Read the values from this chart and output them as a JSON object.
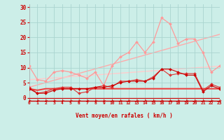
{
  "bg_color": "#cceee8",
  "grid_color": "#aad4d0",
  "xlabel": "Vent moyen/en rafales ( km/h )",
  "xlabel_color": "#cc0000",
  "tick_color": "#cc0000",
  "xmin": 0,
  "xmax": 23,
  "ymin": -1,
  "ymax": 31,
  "yticks": [
    0,
    5,
    10,
    15,
    20,
    25,
    30
  ],
  "lines": [
    {
      "x": [
        0,
        1,
        2,
        3,
        4,
        5,
        6,
        7,
        8,
        9,
        10,
        11,
        12,
        13,
        14,
        15,
        16,
        17,
        18,
        19,
        20,
        21,
        22,
        23
      ],
      "y": [
        3.0,
        1.5,
        1.5,
        2.5,
        3.0,
        3.0,
        3.0,
        3.0,
        3.5,
        3.5,
        4.0,
        5.0,
        5.5,
        5.5,
        5.5,
        6.5,
        9.5,
        9.5,
        8.5,
        7.5,
        7.5,
        2.0,
        4.0,
        3.0
      ],
      "color": "#cc0000",
      "lw": 0.8,
      "marker": "D",
      "ms": 2.0,
      "zorder": 5
    },
    {
      "x": [
        0,
        1,
        2,
        3,
        4,
        5,
        6,
        7,
        8,
        9,
        10,
        11,
        12,
        13,
        14,
        15,
        16,
        17,
        18,
        19,
        20,
        21,
        22,
        23
      ],
      "y": [
        3.5,
        1.5,
        2.0,
        3.0,
        3.5,
        3.5,
        1.5,
        2.0,
        3.5,
        4.0,
        3.5,
        5.5,
        5.5,
        6.0,
        5.5,
        7.0,
        9.5,
        7.5,
        8.0,
        8.0,
        8.0,
        2.5,
        4.5,
        3.5
      ],
      "color": "#dd3333",
      "lw": 0.8,
      "marker": "D",
      "ms": 2.0,
      "zorder": 4
    },
    {
      "x": [
        0,
        1,
        2,
        3,
        4,
        5,
        6,
        7,
        8,
        9,
        10,
        11,
        12,
        13,
        14,
        15,
        16,
        17,
        18,
        19,
        20,
        21,
        22,
        23
      ],
      "y": [
        10.5,
        6.0,
        5.5,
        8.5,
        9.0,
        8.5,
        7.5,
        6.5,
        8.5,
        4.0,
        10.5,
        13.5,
        15.0,
        18.5,
        15.0,
        18.5,
        26.5,
        24.5,
        18.0,
        19.5,
        19.5,
        15.0,
        8.5,
        10.5
      ],
      "color": "#ff9999",
      "lw": 0.9,
      "marker": "D",
      "ms": 2.0,
      "zorder": 3
    },
    {
      "x": [
        0,
        1,
        2,
        3,
        4,
        5,
        6,
        7,
        8,
        9,
        10,
        11,
        12,
        13,
        14,
        15,
        16,
        17,
        18,
        19,
        20,
        21,
        22,
        23
      ],
      "y": [
        3.0,
        2.5,
        3.0,
        3.0,
        3.0,
        3.0,
        3.0,
        3.0,
        3.0,
        3.0,
        3.0,
        3.0,
        3.0,
        3.0,
        3.0,
        3.0,
        3.0,
        3.0,
        3.0,
        3.0,
        3.0,
        3.0,
        3.0,
        3.0
      ],
      "color": "#ee4444",
      "lw": 1.5,
      "marker": null,
      "ms": 0,
      "zorder": 2
    },
    {
      "x": [
        0,
        23
      ],
      "y": [
        3.5,
        21.0
      ],
      "color": "#ffaaaa",
      "lw": 1.0,
      "marker": null,
      "ms": 0,
      "zorder": 1
    },
    {
      "x": [
        0,
        23
      ],
      "y": [
        6.0,
        10.5
      ],
      "color": "#ffcccc",
      "lw": 1.0,
      "marker": null,
      "ms": 0,
      "zorder": 1
    }
  ]
}
